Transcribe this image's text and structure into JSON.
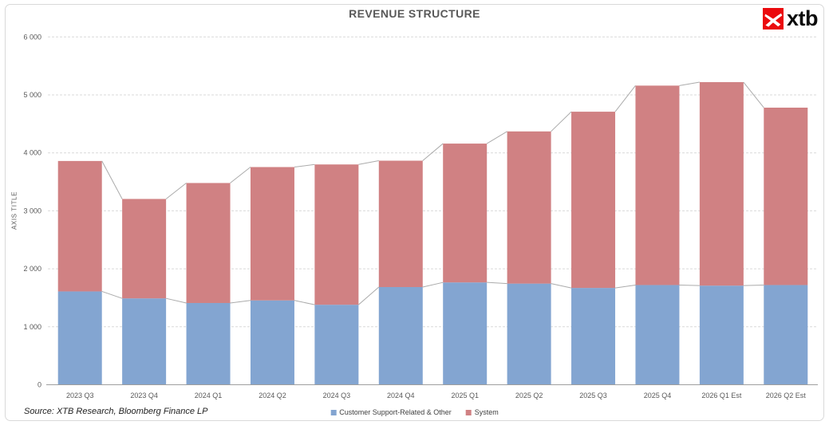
{
  "page": {
    "title": "REVENUE STRUCTURE",
    "source_note": "Source: XTB Research, Bloomberg Finance LP",
    "logo": {
      "text": "xtb",
      "mark": "xtb-x-mark",
      "mark_color": "#EB0A0E"
    }
  },
  "chart_data": {
    "type": "bar",
    "stacked": true,
    "title": "REVENUE STRUCTURE",
    "xlabel": "",
    "ylabel": "AXIS TITLE",
    "ylim": [
      0,
      6000
    ],
    "ytick_step": 1000,
    "ytick_labels": [
      "0",
      "1 000",
      "2 000",
      "3 000",
      "4 000",
      "5 000",
      "6 000"
    ],
    "grid": "horizontal-dashed",
    "legend_position": "bottom-center",
    "series_lines": true,
    "categories": [
      "2023 Q3",
      "2023 Q4",
      "2024 Q1",
      "2024 Q2",
      "2024 Q3",
      "2024 Q4",
      "2025 Q1",
      "2025 Q2",
      "2025 Q3",
      "2025 Q4",
      "2026 Q1 Est",
      "2026 Q2 Est"
    ],
    "series": [
      {
        "name": "Customer Support-Related & Other",
        "color": "#83A5D1",
        "values": [
          1610,
          1490,
          1410,
          1455,
          1380,
          1685,
          1765,
          1745,
          1670,
          1720,
          1710,
          1720
        ]
      },
      {
        "name": "System",
        "color": "#D08183",
        "values": [
          2250,
          1715,
          2070,
          2300,
          2420,
          2180,
          2395,
          2625,
          3040,
          3440,
          3510,
          3060
        ]
      }
    ],
    "totals": [
      3860,
      3205,
      3480,
      3755,
      3800,
      3865,
      4160,
      4370,
      4710,
      5160,
      5220,
      4780
    ]
  },
  "style": {
    "grid_color": "#D9D9D9",
    "axis_line_color": "#9E9E9E",
    "series_line_color": "#ABABAB",
    "tick_text_color": "#595959",
    "legend_text_color": "#404040",
    "border_color": "#D9D9D9"
  }
}
